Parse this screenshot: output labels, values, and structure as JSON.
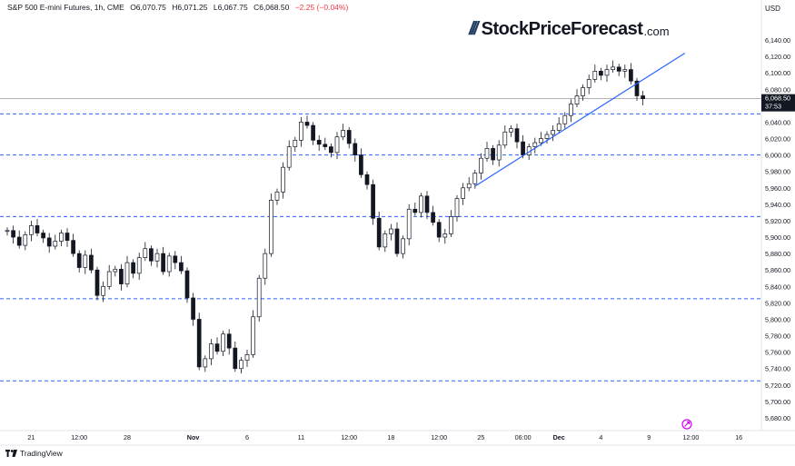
{
  "header": {
    "instrument": "S&P 500 E-mini Futures, 1h, CME",
    "open": "O6,070.75",
    "high": "H6,071.25",
    "low": "L6,067.75",
    "close": "C6,068.50",
    "change": "−2.25 (−0.04%)"
  },
  "logo": {
    "slashes": "///",
    "name": "StockPriceForecast",
    "domain": ".com"
  },
  "branding": {
    "label": "TradingView"
  },
  "colors": {
    "candle": "#131722",
    "trendline": "#2962ff",
    "support_lines": "#2962ff",
    "price_line": "#9598a1",
    "price_tag": "#131722",
    "change_negative": "#f23645"
  },
  "chart_data": {
    "type": "line",
    "title": "",
    "y_axis": {
      "currency": "USD",
      "ylim": [
        5660,
        6160
      ],
      "ticks": [
        5680,
        5700,
        5720,
        5740,
        5760,
        5780,
        5800,
        5820,
        5840,
        5860,
        5880,
        5900,
        5920,
        5940,
        5960,
        5980,
        6000,
        6020,
        6040,
        6060,
        6080,
        6100,
        6120,
        6140
      ],
      "tick_labels": [
        "5,680.00",
        "5,700.00",
        "5,720.00",
        "5,740.00",
        "5,760.00",
        "5,780.00",
        "5,800.00",
        "5,820.00",
        "5,840.00",
        "5,860.00",
        "5,880.00",
        "5,900.00",
        "5,920.00",
        "5,940.00",
        "5,960.00",
        "5,980.00",
        "6,000.00",
        "6,020.00",
        "6,040.00",
        "6,060.00",
        "6,080.00",
        "6,100.00",
        "6,120.00",
        "6,140.00"
      ],
      "position": "right"
    },
    "x_axis": {
      "tick_labels": [
        "21",
        "12:00",
        "28",
        "Nov",
        "6",
        "11",
        "12:00",
        "18",
        "12:00",
        "25",
        "06:00",
        "Dec",
        "4",
        "9",
        "12:00",
        "16"
      ],
      "tick_index": [
        4,
        12,
        20,
        31,
        40,
        49,
        57,
        64,
        72,
        79,
        86,
        92,
        99,
        107,
        114,
        122
      ],
      "bold_ticks": [
        "Nov",
        "Dec"
      ]
    },
    "last_price": {
      "value": 6068.5,
      "label": "6,068.50",
      "countdown": "37:53"
    },
    "horizontal_levels": [
      6050,
      6000,
      5925,
      5825,
      5725
    ],
    "trendline": {
      "start": [
        78,
        5962
      ],
      "end": [
        113,
        6124
      ]
    },
    "series": [
      {
        "values": [
          5908,
          5900,
          5890,
          5903,
          5914,
          5905,
          5899,
          5889,
          5895,
          5905,
          5896,
          5880,
          5863,
          5878,
          5860,
          5829,
          5840,
          5858,
          5861,
          5843,
          5869,
          5856,
          5875,
          5886,
          5871,
          5880,
          5858,
          5877,
          5869,
          5859,
          5826,
          5800,
          5742,
          5752,
          5770,
          5761,
          5782,
          5765,
          5740,
          5750,
          5757,
          5803,
          5850,
          5880,
          5945,
          5955,
          5985,
          6010,
          6018,
          6040,
          6036,
          6018,
          6013,
          6010,
          6003,
          6022,
          6030,
          6014,
          6000,
          5976,
          5964,
          5923,
          5888,
          5904,
          5910,
          5880,
          5898,
          5934,
          5930,
          5950,
          5930,
          5918,
          5900,
          5904,
          5925,
          5947,
          5960,
          5965,
          5978,
          5996,
          6008,
          5994,
          6012,
          6028,
          6032,
          6016,
          6000,
          6010,
          6015,
          6020,
          6025,
          6030,
          6038,
          6048,
          6062,
          6072,
          6082,
          6092,
          6102,
          6097,
          6104,
          6107,
          6102,
          6104,
          6090,
          6072,
          6068.5
        ]
      }
    ]
  }
}
